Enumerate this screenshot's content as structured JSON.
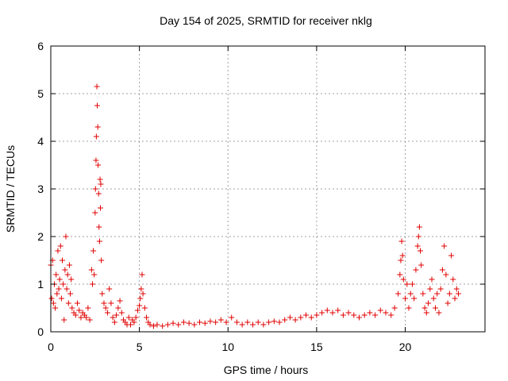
{
  "chart_data": {
    "type": "scatter",
    "title": "Day 154 of 2025, SRMTID for receiver nklg",
    "xlabel": "GPS time / hours",
    "ylabel": "SRMTID / TECUs",
    "xlim": [
      0,
      24.5
    ],
    "ylim": [
      0,
      6
    ],
    "x_ticks": [
      0,
      5,
      10,
      15,
      20
    ],
    "y_ticks": [
      0,
      1,
      2,
      3,
      4,
      5,
      6
    ],
    "grid": true,
    "marker": "+",
    "color": "#e00000",
    "series": [
      {
        "name": "SRMTID",
        "points": [
          [
            0.0,
            1.4
          ],
          [
            0.05,
            0.7
          ],
          [
            0.1,
            1.5
          ],
          [
            0.15,
            0.6
          ],
          [
            0.2,
            1.0
          ],
          [
            0.25,
            0.5
          ],
          [
            0.3,
            1.2
          ],
          [
            0.35,
            0.8
          ],
          [
            0.4,
            1.7
          ],
          [
            0.45,
            0.9
          ],
          [
            0.5,
            1.1
          ],
          [
            0.55,
            1.8
          ],
          [
            0.6,
            0.7
          ],
          [
            0.65,
            1.5
          ],
          [
            0.7,
            1.0
          ],
          [
            0.75,
            0.25
          ],
          [
            0.8,
            1.3
          ],
          [
            0.85,
            2.0
          ],
          [
            0.9,
            0.9
          ],
          [
            0.95,
            1.2
          ],
          [
            1.0,
            0.6
          ],
          [
            1.05,
            1.4
          ],
          [
            1.1,
            0.8
          ],
          [
            1.15,
            1.1
          ],
          [
            1.2,
            0.5
          ],
          [
            1.3,
            0.4
          ],
          [
            1.4,
            0.35
          ],
          [
            1.5,
            0.6
          ],
          [
            1.6,
            0.45
          ],
          [
            1.7,
            0.3
          ],
          [
            1.8,
            0.4
          ],
          [
            1.9,
            0.35
          ],
          [
            2.0,
            0.3
          ],
          [
            2.1,
            0.5
          ],
          [
            2.2,
            0.25
          ],
          [
            2.3,
            1.3
          ],
          [
            2.35,
            1.0
          ],
          [
            2.4,
            1.7
          ],
          [
            2.45,
            1.2
          ],
          [
            2.5,
            2.5
          ],
          [
            2.52,
            3.0
          ],
          [
            2.55,
            3.6
          ],
          [
            2.57,
            4.1
          ],
          [
            2.6,
            5.15
          ],
          [
            2.62,
            4.75
          ],
          [
            2.65,
            4.3
          ],
          [
            2.67,
            3.5
          ],
          [
            2.7,
            2.9
          ],
          [
            2.72,
            2.2
          ],
          [
            2.75,
            1.9
          ],
          [
            2.78,
            3.2
          ],
          [
            2.8,
            2.6
          ],
          [
            2.82,
            3.1
          ],
          [
            2.85,
            1.5
          ],
          [
            2.9,
            0.8
          ],
          [
            3.0,
            0.6
          ],
          [
            3.1,
            0.5
          ],
          [
            3.2,
            0.4
          ],
          [
            3.3,
            0.9
          ],
          [
            3.4,
            0.6
          ],
          [
            3.5,
            0.3
          ],
          [
            3.6,
            0.2
          ],
          [
            3.7,
            0.35
          ],
          [
            3.8,
            0.5
          ],
          [
            3.9,
            0.65
          ],
          [
            4.0,
            0.4
          ],
          [
            4.1,
            0.25
          ],
          [
            4.2,
            0.2
          ],
          [
            4.3,
            0.15
          ],
          [
            4.4,
            0.3
          ],
          [
            4.5,
            0.15
          ],
          [
            4.6,
            0.25
          ],
          [
            4.7,
            0.2
          ],
          [
            4.8,
            0.3
          ],
          [
            4.9,
            0.45
          ],
          [
            5.0,
            0.55
          ],
          [
            5.05,
            0.7
          ],
          [
            5.1,
            0.9
          ],
          [
            5.15,
            1.2
          ],
          [
            5.2,
            0.8
          ],
          [
            5.3,
            0.5
          ],
          [
            5.4,
            0.3
          ],
          [
            5.5,
            0.2
          ],
          [
            5.6,
            0.15
          ],
          [
            5.8,
            0.12
          ],
          [
            6.0,
            0.15
          ],
          [
            6.3,
            0.12
          ],
          [
            6.6,
            0.15
          ],
          [
            6.9,
            0.18
          ],
          [
            7.2,
            0.15
          ],
          [
            7.5,
            0.2
          ],
          [
            7.8,
            0.18
          ],
          [
            8.1,
            0.15
          ],
          [
            8.4,
            0.2
          ],
          [
            8.7,
            0.18
          ],
          [
            9.0,
            0.22
          ],
          [
            9.3,
            0.2
          ],
          [
            9.6,
            0.25
          ],
          [
            9.9,
            0.2
          ],
          [
            10.2,
            0.3
          ],
          [
            10.5,
            0.2
          ],
          [
            10.8,
            0.15
          ],
          [
            11.1,
            0.2
          ],
          [
            11.4,
            0.15
          ],
          [
            11.7,
            0.2
          ],
          [
            12.0,
            0.15
          ],
          [
            12.3,
            0.2
          ],
          [
            12.6,
            0.22
          ],
          [
            12.9,
            0.2
          ],
          [
            13.2,
            0.25
          ],
          [
            13.5,
            0.3
          ],
          [
            13.8,
            0.25
          ],
          [
            14.1,
            0.3
          ],
          [
            14.4,
            0.35
          ],
          [
            14.7,
            0.3
          ],
          [
            15.0,
            0.35
          ],
          [
            15.3,
            0.4
          ],
          [
            15.6,
            0.45
          ],
          [
            15.9,
            0.4
          ],
          [
            16.2,
            0.45
          ],
          [
            16.5,
            0.35
          ],
          [
            16.8,
            0.4
          ],
          [
            17.1,
            0.35
          ],
          [
            17.4,
            0.3
          ],
          [
            17.7,
            0.35
          ],
          [
            18.0,
            0.4
          ],
          [
            18.3,
            0.35
          ],
          [
            18.6,
            0.45
          ],
          [
            18.9,
            0.4
          ],
          [
            19.2,
            0.35
          ],
          [
            19.4,
            0.5
          ],
          [
            19.6,
            0.8
          ],
          [
            19.7,
            1.2
          ],
          [
            19.75,
            1.5
          ],
          [
            19.8,
            1.9
          ],
          [
            19.85,
            1.6
          ],
          [
            19.9,
            1.1
          ],
          [
            20.0,
            0.7
          ],
          [
            20.1,
            1.0
          ],
          [
            20.2,
            0.5
          ],
          [
            20.3,
            0.8
          ],
          [
            20.4,
            1.0
          ],
          [
            20.5,
            0.7
          ],
          [
            20.6,
            1.3
          ],
          [
            20.7,
            1.8
          ],
          [
            20.75,
            2.0
          ],
          [
            20.8,
            2.2
          ],
          [
            20.85,
            1.7
          ],
          [
            20.9,
            1.4
          ],
          [
            21.0,
            0.8
          ],
          [
            21.1,
            0.5
          ],
          [
            21.2,
            0.4
          ],
          [
            21.3,
            0.6
          ],
          [
            21.4,
            0.9
          ],
          [
            21.5,
            1.1
          ],
          [
            21.6,
            0.7
          ],
          [
            21.7,
            0.5
          ],
          [
            21.8,
            0.8
          ],
          [
            21.9,
            0.4
          ],
          [
            22.0,
            0.9
          ],
          [
            22.1,
            1.3
          ],
          [
            22.2,
            1.8
          ],
          [
            22.3,
            1.2
          ],
          [
            22.4,
            0.6
          ],
          [
            22.5,
            0.8
          ],
          [
            22.6,
            1.6
          ],
          [
            22.7,
            1.1
          ],
          [
            22.8,
            0.7
          ],
          [
            22.9,
            0.9
          ],
          [
            23.0,
            0.8
          ]
        ]
      }
    ]
  }
}
